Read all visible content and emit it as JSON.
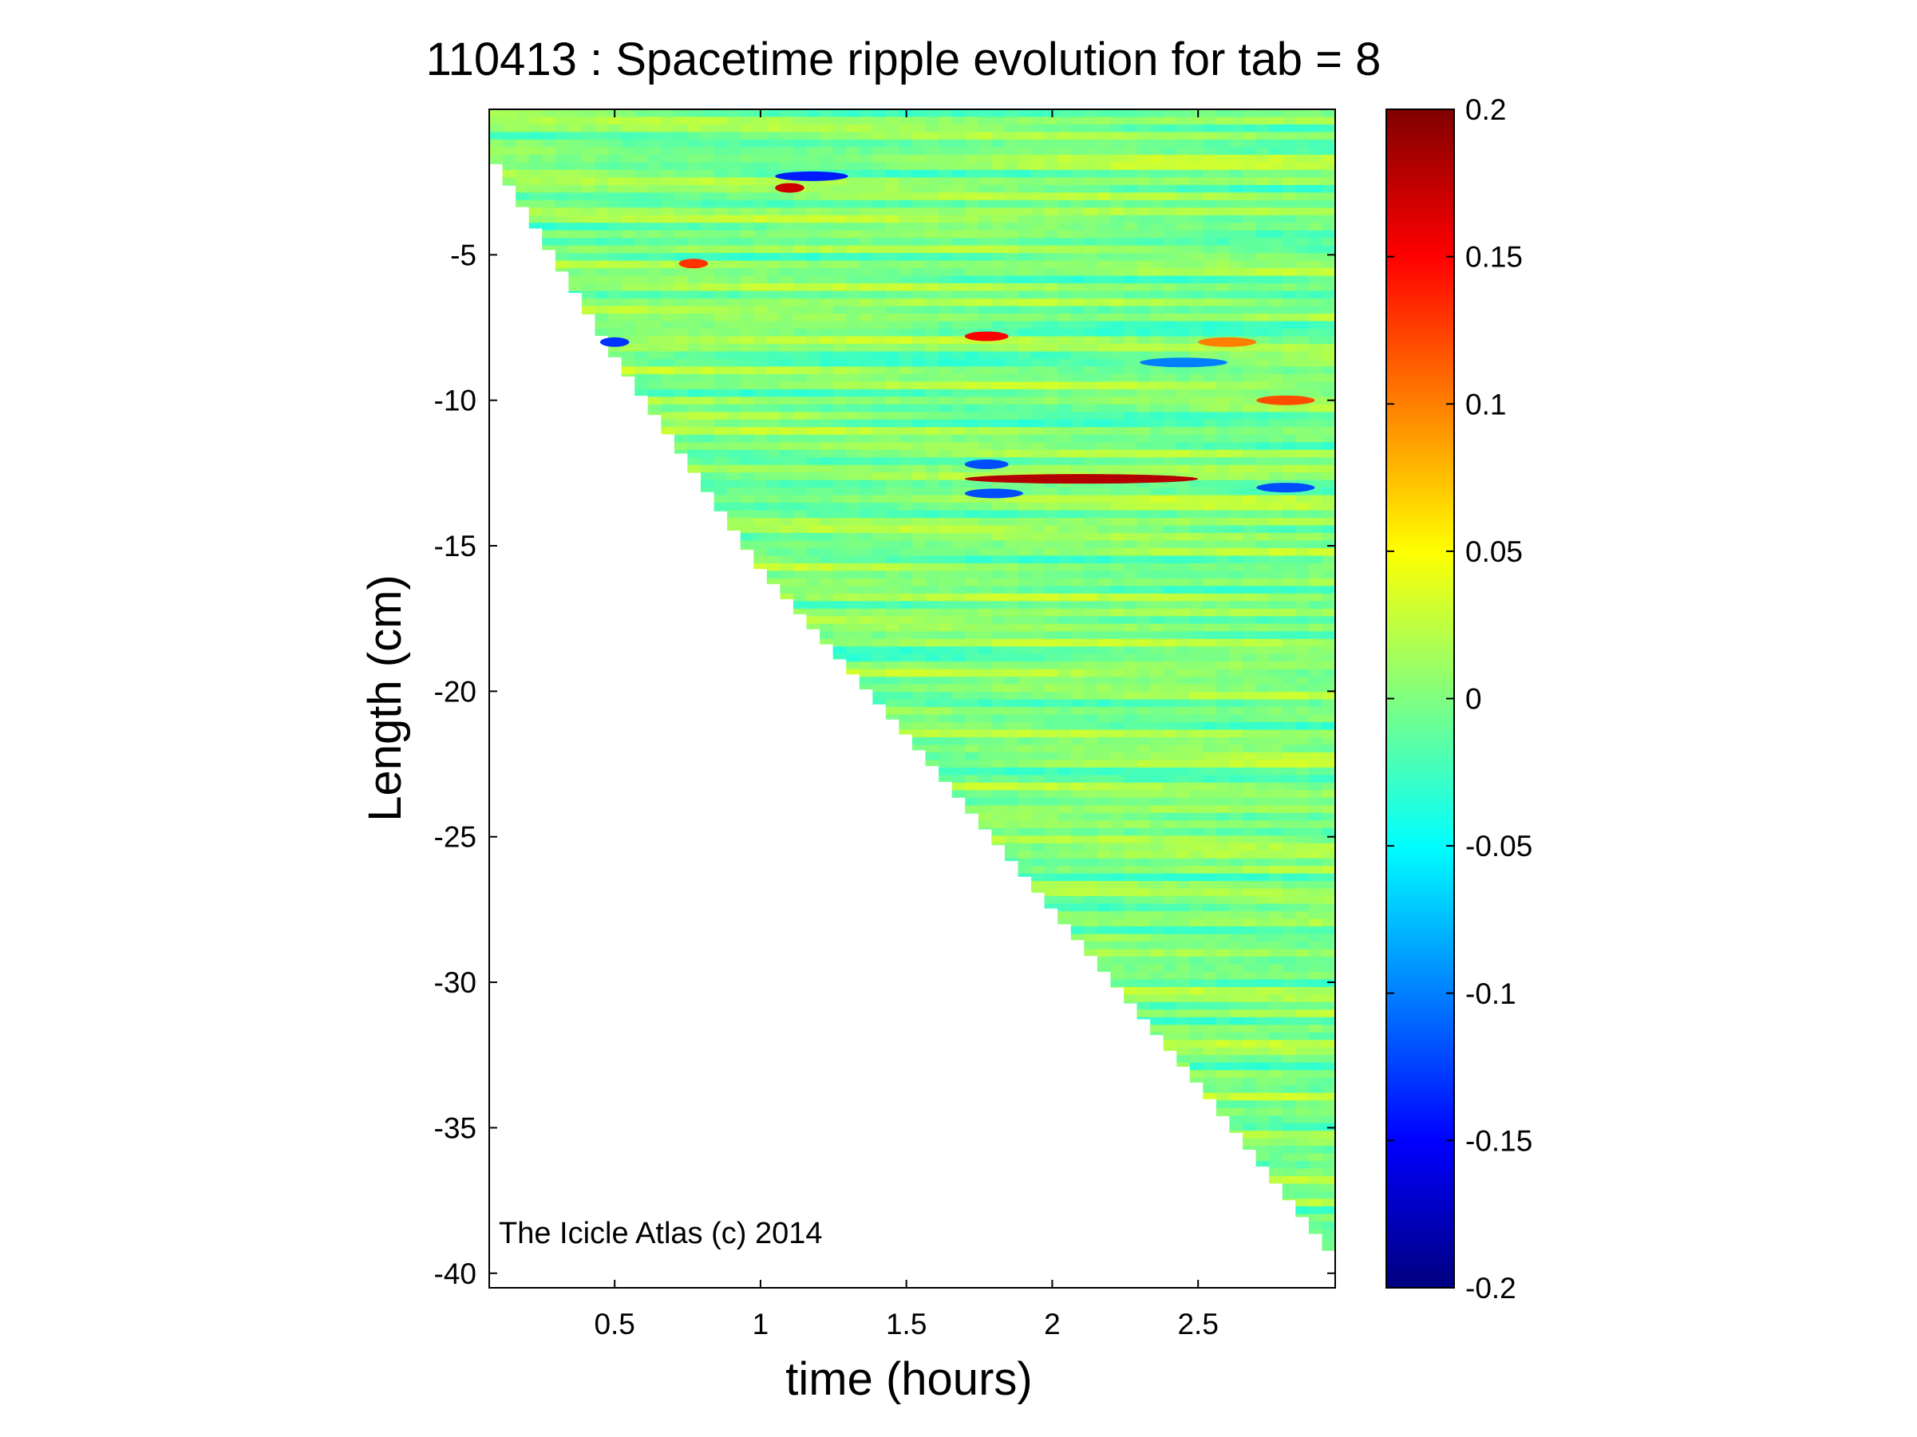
{
  "chart_data": {
    "type": "heatmap",
    "title": "110413 : Spacetime ripple evolution for tab = 8",
    "xlabel": "time (hours)",
    "ylabel": "Length (cm)",
    "annotation": "The Icicle Atlas (c) 2014",
    "xlim": [
      0.07,
      2.97
    ],
    "ylim": [
      -40.5,
      0
    ],
    "xticks": [
      0.5,
      1,
      1.5,
      2,
      2.5
    ],
    "xtick_labels": [
      "0.5",
      "1",
      "1.5",
      "2",
      "2.5"
    ],
    "yticks": [
      -5,
      -10,
      -15,
      -20,
      -25,
      -30,
      -35,
      -40
    ],
    "ytick_labels": [
      "-5",
      "-10",
      "-15",
      "-20",
      "-25",
      "-30",
      "-35",
      "-40"
    ],
    "colorbar": {
      "colormap": "jet",
      "clim": [
        -0.2,
        0.2
      ],
      "ticks": [
        0.2,
        0.15,
        0.1,
        0.05,
        0,
        -0.05,
        -0.1,
        -0.15,
        -0.2
      ],
      "tick_labels": [
        "0.2",
        "0.15",
        "0.1",
        "0.05",
        "0",
        "-0.05",
        "-0.1",
        "-0.15",
        "-0.2"
      ]
    },
    "data_region": "upper triangle: icicle length grows roughly linearly from about -1.5 cm at t = 0.07 h to about -39.5 cm at t = 2.97 h; area below the growth front is blank",
    "growth_front": [
      {
        "t": 0.07,
        "length": -1.5
      },
      {
        "t": 0.5,
        "length": -8.5
      },
      {
        "t": 1.0,
        "length": -15.8
      },
      {
        "t": 1.5,
        "length": -21.5
      },
      {
        "t": 2.0,
        "length": -27.5
      },
      {
        "t": 2.5,
        "length": -33.5
      },
      {
        "t": 2.97,
        "length": -39.5
      }
    ],
    "background_value": 0.0,
    "notable_features": [
      {
        "t_start": 1.05,
        "t_end": 1.15,
        "length": -2.7,
        "value": 0.17
      },
      {
        "t_start": 1.05,
        "t_end": 1.3,
        "length": -2.3,
        "value": -0.14
      },
      {
        "t_start": 0.72,
        "t_end": 0.82,
        "length": -5.3,
        "value": 0.13
      },
      {
        "t_start": 0.45,
        "t_end": 0.55,
        "length": -8.0,
        "value": -0.13
      },
      {
        "t_start": 1.7,
        "t_end": 1.85,
        "length": -7.8,
        "value": 0.15
      },
      {
        "t_start": 1.7,
        "t_end": 2.5,
        "length": -12.7,
        "value": 0.18
      },
      {
        "t_start": 1.7,
        "t_end": 1.85,
        "length": -12.2,
        "value": -0.12
      },
      {
        "t_start": 1.7,
        "t_end": 1.9,
        "length": -13.2,
        "value": -0.12
      },
      {
        "t_start": 2.7,
        "t_end": 2.9,
        "length": -13.0,
        "value": -0.12
      },
      {
        "t_start": 2.7,
        "t_end": 2.9,
        "length": -10.0,
        "value": 0.12
      },
      {
        "t_start": 2.3,
        "t_end": 2.6,
        "length": -8.7,
        "value": -0.1
      },
      {
        "t_start": 2.5,
        "t_end": 2.7,
        "length": -8.0,
        "value": 0.1
      }
    ]
  }
}
